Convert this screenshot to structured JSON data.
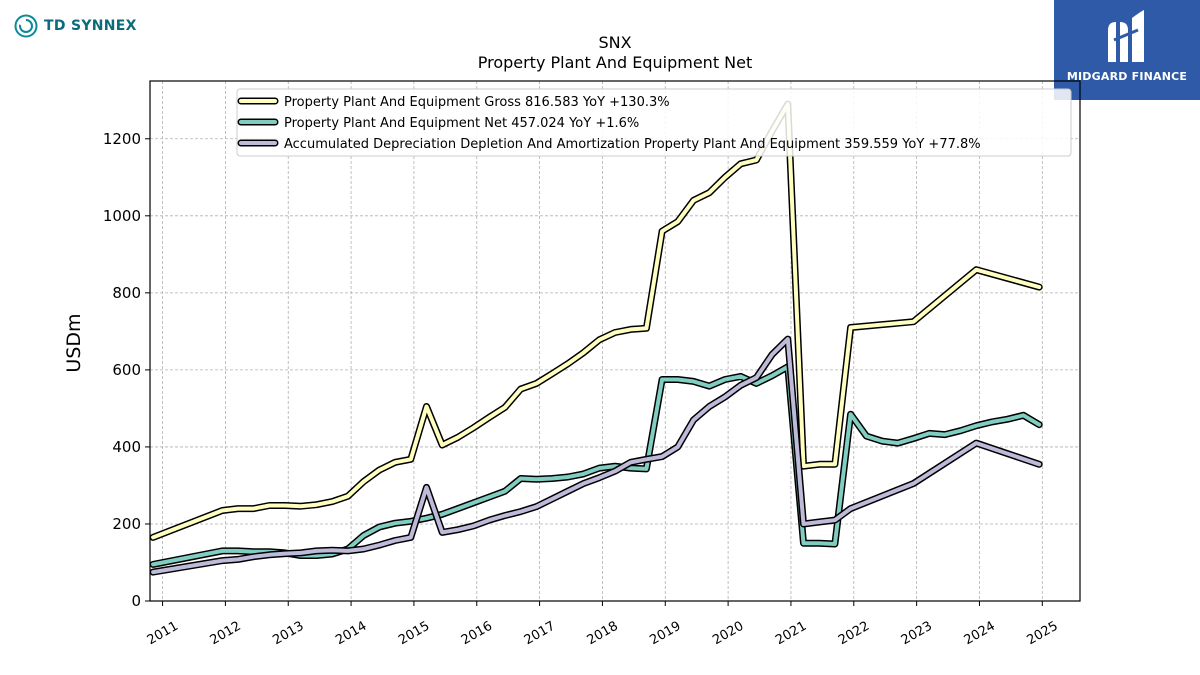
{
  "brand_left": {
    "name": "TD SYNNEX",
    "icon": "td-synnex-logo-icon"
  },
  "brand_right": {
    "name": "MIDGARD FINANCE",
    "icon": "midgard-logo-icon",
    "background": "#2f5aa8"
  },
  "chart_data": {
    "type": "line",
    "title": "SNX",
    "subtitle": "Property Plant And Equipment Net",
    "ylabel": "USDm",
    "xlabel": "",
    "xlim": [
      2010.8,
      2025.6
    ],
    "ylim": [
      0,
      1350
    ],
    "yticks": [
      0,
      200,
      400,
      600,
      800,
      1000,
      1200
    ],
    "xticks": [
      2011,
      2012,
      2013,
      2014,
      2015,
      2016,
      2017,
      2018,
      2019,
      2020,
      2021,
      2022,
      2023,
      2024,
      2025
    ],
    "grid": true,
    "legend_position": "top",
    "series": [
      {
        "name": "Property Plant And Equipment Gross",
        "legend": "Property Plant And Equipment Gross  816.583 YoY +130.3%",
        "color": "#ffffbf",
        "x": [
          2010.85,
          2011.95,
          2012.2,
          2012.45,
          2012.7,
          2012.95,
          2013.2,
          2013.45,
          2013.7,
          2013.95,
          2014.2,
          2014.45,
          2014.7,
          2014.95,
          2015.2,
          2015.45,
          2015.7,
          2015.95,
          2016.2,
          2016.45,
          2016.7,
          2016.95,
          2017.2,
          2017.45,
          2017.7,
          2017.95,
          2018.2,
          2018.45,
          2018.7,
          2018.95,
          2019.2,
          2019.45,
          2019.7,
          2019.95,
          2020.2,
          2020.45,
          2020.7,
          2020.95,
          2021.2,
          2021.45,
          2021.7,
          2021.95,
          2022.95,
          2023.95,
          2024.95
        ],
        "y": [
          165,
          235,
          240,
          240,
          248,
          248,
          246,
          250,
          258,
          272,
          310,
          340,
          360,
          368,
          505,
          405,
          425,
          450,
          477,
          503,
          550,
          565,
          590,
          616,
          645,
          678,
          697,
          705,
          708,
          960,
          985,
          1040,
          1060,
          1100,
          1135,
          1145,
          1220,
          1290,
          350,
          355,
          355,
          710,
          725,
          860,
          815
        ]
      },
      {
        "name": "Property Plant And Equipment Net",
        "legend": "Property Plant And Equipment Net  457.024 YoY +1.6%",
        "color": "#80cdc1",
        "x": [
          2010.85,
          2011.95,
          2012.2,
          2012.45,
          2012.7,
          2012.95,
          2013.2,
          2013.45,
          2013.7,
          2013.95,
          2014.2,
          2014.45,
          2014.7,
          2014.95,
          2015.2,
          2015.45,
          2015.7,
          2015.95,
          2016.2,
          2016.45,
          2016.7,
          2016.95,
          2017.2,
          2017.45,
          2017.7,
          2017.95,
          2018.2,
          2018.45,
          2018.7,
          2018.95,
          2019.2,
          2019.45,
          2019.7,
          2019.95,
          2020.2,
          2020.45,
          2020.7,
          2020.95,
          2021.2,
          2021.45,
          2021.7,
          2021.95,
          2022.2,
          2022.45,
          2022.7,
          2022.95,
          2023.2,
          2023.45,
          2023.7,
          2023.95,
          2024.2,
          2024.45,
          2024.7,
          2024.95
        ],
        "y": [
          95,
          130,
          130,
          128,
          128,
          125,
          118,
          118,
          122,
          135,
          170,
          192,
          202,
          207,
          215,
          225,
          240,
          255,
          270,
          285,
          318,
          316,
          318,
          322,
          330,
          345,
          350,
          345,
          343,
          575,
          575,
          570,
          558,
          575,
          583,
          565,
          585,
          608,
          150,
          150,
          148,
          485,
          428,
          415,
          410,
          422,
          435,
          432,
          442,
          455,
          465,
          472,
          482,
          458
        ]
      },
      {
        "name": "Accumulated Depreciation Depletion And Amortization Property Plant And Equipment",
        "legend": "Accumulated Depreciation Depletion And Amortization Property Plant And Equipment  359.559 YoY +77.8%",
        "color": "#bebada",
        "x": [
          2010.85,
          2011.95,
          2012.2,
          2012.45,
          2012.7,
          2012.95,
          2013.2,
          2013.45,
          2013.7,
          2013.95,
          2014.2,
          2014.45,
          2014.7,
          2014.95,
          2015.2,
          2015.45,
          2015.7,
          2015.95,
          2016.2,
          2016.45,
          2016.7,
          2016.95,
          2017.2,
          2017.45,
          2017.7,
          2017.95,
          2018.2,
          2018.45,
          2018.7,
          2018.95,
          2019.2,
          2019.45,
          2019.7,
          2019.95,
          2020.2,
          2020.45,
          2020.7,
          2020.95,
          2021.2,
          2021.45,
          2021.7,
          2021.95,
          2022.95,
          2023.95,
          2024.95
        ],
        "y": [
          75,
          105,
          108,
          115,
          120,
          123,
          125,
          130,
          132,
          130,
          135,
          145,
          157,
          165,
          295,
          178,
          185,
          195,
          210,
          222,
          232,
          245,
          265,
          285,
          305,
          320,
          337,
          360,
          368,
          375,
          400,
          470,
          505,
          530,
          560,
          580,
          640,
          680,
          200,
          205,
          210,
          240,
          305,
          410,
          355
        ]
      }
    ]
  }
}
